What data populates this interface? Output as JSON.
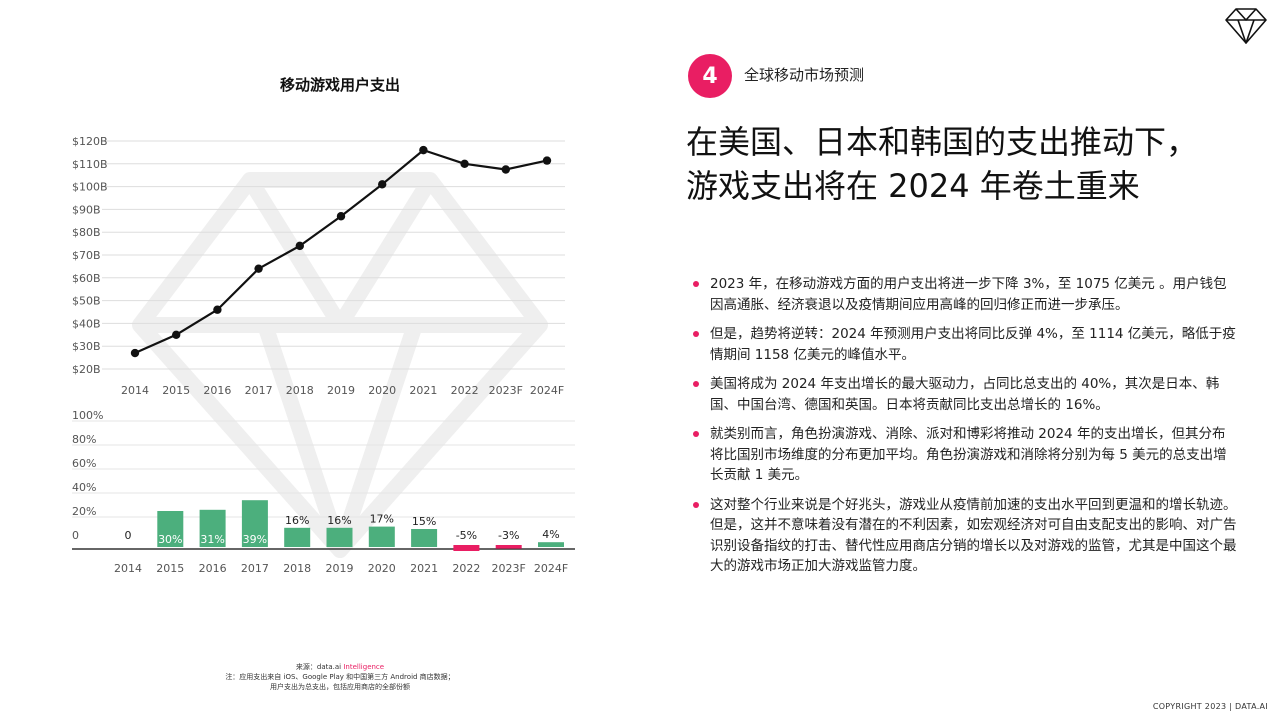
{
  "section": {
    "number": "4",
    "label": "全球移动市场预测"
  },
  "headline": {
    "line1": "在美国、日本和韩国的支出推动下，",
    "line2": "游戏支出将在 2024 年卷土重来"
  },
  "bullets": [
    "2023 年，在移动游戏方面的用户支出将进一步下降 3%，至 1075 亿美元 。用户钱包因高通胀、经济衰退以及疫情期间应用高峰的回归修正而进一步承压。",
    "但是，趋势将逆转：2024 年预测用户支出将同比反弹 4%，至 1114 亿美元，略低于疫情期间 1158 亿美元的峰值水平。",
    "美国将成为 2024 年支出增长的最大驱动力，占同比总支出的 40%，其次是日本、韩国、中国台湾、德国和英国。日本将贡献同比支出总增长的 16%。",
    "就类别而言，角色扮演游戏、消除、派对和博彩将推动 2024 年的支出增长，但其分布将比国别市场维度的分布更加平均。角色扮演游戏和消除将分别为每 5 美元的总支出增长贡献 1 美元。",
    "这对整个行业来说是个好兆头，游戏业从疫情前加速的支出水平回到更温和的增长轨迹。但是，这并不意味着没有潜在的不利因素，如宏观经济对可自由支配支出的影响、对广告识别设备指纹的打击、替代性应用商店分销的增长以及对游戏的监管，尤其是中国这个最大的游戏市场正加大游戏监管力度。"
  ],
  "source": {
    "prefix": "来源：",
    "brand": "data.ai",
    "brand_highlight": "Intelligence",
    "note1": "注：应用支出来自 iOS、Google Play 和中国第三方 Android 商店数据；",
    "note2": "用户支出为总支出，包括应用商店的全部份额"
  },
  "copyright": "COPYRIGHT 2023 | DATA.AI",
  "colors": {
    "accent": "#e91e63",
    "positive_bar": "#4caf7d",
    "negative_bar": "#e91e63",
    "line": "#111111"
  },
  "icons": {
    "logo": "diamond-logo-icon",
    "watermark": "diamond-watermark"
  },
  "chart_data": [
    {
      "type": "line",
      "title": "移动游戏用户支出",
      "categories": [
        "2014",
        "2015",
        "2016",
        "2017",
        "2018",
        "2019",
        "2020",
        "2021",
        "2022",
        "2023F",
        "2024F"
      ],
      "values": [
        27,
        35,
        46,
        64,
        74,
        87,
        101,
        116,
        110,
        107.5,
        111.4
      ],
      "ylim": [
        20,
        120
      ],
      "yticks": [
        "$20B",
        "$30B",
        "$40B",
        "$50B",
        "$60B",
        "$70B",
        "$80B",
        "$90B",
        "$100B",
        "$110B",
        "$120B"
      ],
      "grid": true
    },
    {
      "type": "bar",
      "categories": [
        "2014",
        "2015",
        "2016",
        "2017",
        "2018",
        "2019",
        "2020",
        "2021",
        "2022",
        "2023F",
        "2024F"
      ],
      "values": [
        0,
        30,
        31,
        39,
        16,
        16,
        17,
        15,
        -5,
        -3,
        4
      ],
      "labels": [
        "0",
        "30%",
        "31%",
        "39%",
        "16%",
        "16%",
        "17%",
        "15%",
        "-5%",
        "-3%",
        "4%"
      ],
      "ylim": [
        0,
        100
      ],
      "yticks": [
        "0",
        "20%",
        "40%",
        "60%",
        "80%",
        "100%"
      ],
      "grid": true
    }
  ]
}
